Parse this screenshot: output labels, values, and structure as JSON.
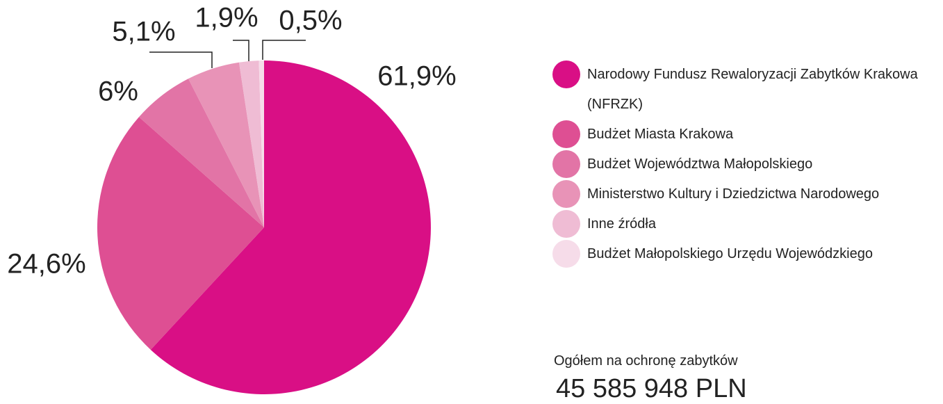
{
  "chart_data": {
    "type": "pie",
    "categories": [
      "Narodowy Fundusz Rewaloryzacji Zabytków Krakowa (NFRZK)",
      "Budżet Miasta Krakowa",
      "Budżet Województwa Małopolskiego",
      "Ministerstwo Kultury i Dziedzictwa Narodowego",
      "Inne źródła",
      "Budżet Małopolskiego Urzędu Wojewódzkiego"
    ],
    "values": [
      61.9,
      24.6,
      6,
      5.1,
      1.9,
      0.5
    ],
    "value_labels": [
      "61,9%",
      "24,6%",
      "6%",
      "5,1%",
      "1,9%",
      "0,5%"
    ],
    "colors": [
      "#d90f85",
      "#de4f93",
      "#e274a6",
      "#e893b7",
      "#efbcd4",
      "#f6dce9"
    ],
    "total_label": "Ogółem na ochronę zabytków",
    "total": "45 585 948 PLN"
  }
}
